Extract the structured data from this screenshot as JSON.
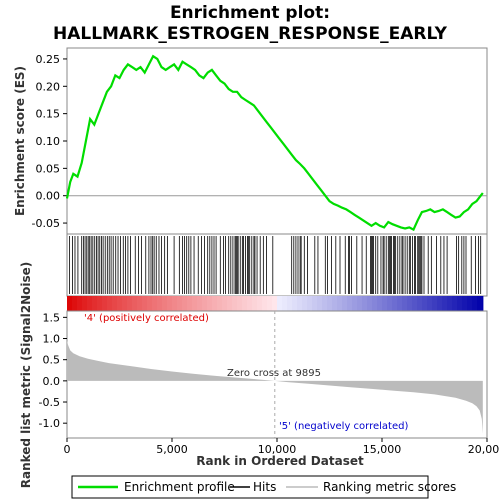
{
  "title_line1": "Enrichment plot:",
  "title_line2": "HALLMARK_ESTROGEN_RESPONSE_EARLY",
  "chart_data": [
    {
      "type": "line",
      "name": "enrichment-score-panel",
      "ylabel": "Enrichment score (ES)",
      "xlim": [
        0,
        20000
      ],
      "ylim": [
        -0.07,
        0.27
      ],
      "yticks": [
        -0.05,
        0.0,
        0.05,
        0.1,
        0.15,
        0.2,
        0.25
      ],
      "ytick_labels": [
        "-0.05",
        "0.00",
        "0.05",
        "0.10",
        "0.15",
        "0.20",
        "0.25"
      ],
      "series": [
        {
          "name": "Enrichment profile",
          "color": "#00dd00",
          "x": [
            0,
            150,
            300,
            500,
            700,
            900,
            1100,
            1300,
            1500,
            1700,
            1900,
            2100,
            2300,
            2500,
            2700,
            2900,
            3100,
            3300,
            3500,
            3700,
            3900,
            4100,
            4300,
            4500,
            4700,
            4900,
            5100,
            5300,
            5500,
            5700,
            5900,
            6100,
            6300,
            6500,
            6700,
            6900,
            7100,
            7300,
            7500,
            7700,
            7900,
            8100,
            8300,
            8500,
            8700,
            8900,
            9100,
            9300,
            9500,
            9700,
            9900,
            10100,
            10300,
            10500,
            10700,
            10900,
            11100,
            11300,
            11500,
            11700,
            11900,
            12100,
            12300,
            12500,
            12700,
            12900,
            13100,
            13300,
            13500,
            13700,
            13900,
            14100,
            14300,
            14500,
            14700,
            14900,
            15100,
            15300,
            15500,
            15700,
            15900,
            16100,
            16300,
            16500,
            16700,
            16900,
            17100,
            17300,
            17500,
            17700,
            17900,
            18100,
            18300,
            18500,
            18700,
            18900,
            19100,
            19300,
            19500,
            19700,
            19800
          ],
          "y": [
            -0.005,
            0.025,
            0.04,
            0.035,
            0.06,
            0.1,
            0.14,
            0.13,
            0.15,
            0.17,
            0.19,
            0.2,
            0.22,
            0.215,
            0.23,
            0.24,
            0.235,
            0.23,
            0.235,
            0.225,
            0.24,
            0.255,
            0.25,
            0.235,
            0.23,
            0.235,
            0.24,
            0.23,
            0.245,
            0.24,
            0.235,
            0.23,
            0.22,
            0.215,
            0.225,
            0.23,
            0.22,
            0.21,
            0.205,
            0.195,
            0.19,
            0.19,
            0.18,
            0.175,
            0.17,
            0.165,
            0.155,
            0.145,
            0.135,
            0.125,
            0.115,
            0.105,
            0.095,
            0.085,
            0.075,
            0.065,
            0.058,
            0.05,
            0.04,
            0.03,
            0.02,
            0.01,
            0.0,
            -0.01,
            -0.015,
            -0.018,
            -0.022,
            -0.025,
            -0.03,
            -0.035,
            -0.04,
            -0.045,
            -0.05,
            -0.055,
            -0.05,
            -0.055,
            -0.058,
            -0.048,
            -0.052,
            -0.055,
            -0.058,
            -0.06,
            -0.058,
            -0.062,
            -0.045,
            -0.03,
            -0.028,
            -0.025,
            -0.03,
            -0.028,
            -0.025,
            -0.03,
            -0.035,
            -0.04,
            -0.038,
            -0.03,
            -0.025,
            -0.015,
            -0.01,
            0.0,
            0.005
          ]
        }
      ],
      "baseline": 0.0
    },
    {
      "type": "scatter",
      "name": "hits-panel",
      "legend_label": "Hits",
      "color": "#000000",
      "hit_positions": [
        120,
        260,
        380,
        520,
        700,
        780,
        860,
        940,
        1010,
        1080,
        1150,
        1230,
        1320,
        1400,
        1480,
        1560,
        1640,
        1720,
        1820,
        1920,
        2010,
        2100,
        2200,
        2320,
        2430,
        2550,
        2680,
        2790,
        2900,
        3020,
        3250,
        3400,
        3550,
        3750,
        3900,
        4000,
        4080,
        4150,
        4250,
        4380,
        4500,
        4650,
        4780,
        5100,
        5350,
        5500,
        5600,
        5700,
        5800,
        5900,
        6050,
        6250,
        6400,
        6550,
        6700,
        6800,
        6900,
        7000,
        7100,
        7300,
        7450,
        7550,
        7700,
        7800,
        7900,
        8000,
        8050,
        8100,
        8150,
        8250,
        8350,
        8400,
        8500,
        8600,
        8650,
        8700,
        8800,
        8900,
        8950,
        9050,
        9200,
        9350,
        9500,
        9800,
        10700,
        10800,
        10900,
        11000,
        11100,
        11150,
        11300,
        11450,
        11800,
        11950,
        12300,
        12400,
        12600,
        12800,
        13000,
        13250,
        13400,
        13450,
        13550,
        13800,
        14050,
        14250,
        14450,
        14500,
        14550,
        14600,
        14700,
        14800,
        14950,
        15050,
        15100,
        15200,
        15300,
        15350,
        15400,
        15450,
        15550,
        15600,
        15650,
        15750,
        15850,
        15950,
        16000,
        16100,
        16200,
        16300,
        16350,
        16450,
        16550,
        16600,
        16700,
        16750,
        16800,
        16850,
        16900,
        17000,
        17200,
        17350,
        17600,
        17800,
        17950,
        18100,
        18550,
        18650,
        18800,
        18900,
        19000,
        19250,
        19450,
        19600,
        19700
      ]
    },
    {
      "type": "heatmap",
      "name": "rank-color-bar",
      "description_colors": {
        "positive": "#dd0000",
        "negative": "#0000aa",
        "neutral": "#f4f4ff"
      }
    },
    {
      "type": "area",
      "name": "ranked-list-panel",
      "xlabel": "Rank in Ordered Dataset",
      "ylabel": "Ranked list metric (Signal2Noise)",
      "xlim": [
        0,
        20000
      ],
      "ylim": [
        -1.35,
        1.65
      ],
      "xticks": [
        0,
        5000,
        10000,
        15000,
        20000
      ],
      "xtick_labels": [
        "0",
        "5,000",
        "10,000",
        "15,000",
        "20,000"
      ],
      "yticks": [
        -1.0,
        -0.5,
        0.0,
        0.5,
        1.0,
        1.5
      ],
      "ytick_labels": [
        "-1.0",
        "-0.5",
        "0.0",
        "0.5",
        "1.0",
        "1.5"
      ],
      "x": [
        0,
        50,
        150,
        300,
        600,
        1000,
        1500,
        2000,
        3000,
        4000,
        5000,
        6000,
        7000,
        8000,
        9000,
        9895,
        10500,
        11500,
        12500,
        13500,
        14500,
        15500,
        16500,
        17500,
        18500,
        19000,
        19300,
        19500,
        19650,
        19750,
        19800
      ],
      "y": [
        0.95,
        0.85,
        0.72,
        0.65,
        0.58,
        0.52,
        0.47,
        0.42,
        0.35,
        0.28,
        0.22,
        0.17,
        0.12,
        0.08,
        0.04,
        0.0,
        -0.03,
        -0.07,
        -0.11,
        -0.15,
        -0.19,
        -0.23,
        -0.27,
        -0.32,
        -0.4,
        -0.47,
        -0.53,
        -0.6,
        -0.7,
        -0.9,
        -1.25
      ],
      "fill": "#bbbbbb",
      "zero_cross_label": "Zero cross at 9895",
      "zero_cross": 9895,
      "pos_label": "'4' (positively correlated)",
      "neg_label": "'5' (negatively correlated)"
    }
  ],
  "legend": {
    "items": [
      {
        "label": "Enrichment profile",
        "color": "#00dd00"
      },
      {
        "label": "Hits",
        "color": "#000000"
      },
      {
        "label": "Ranking metric scores",
        "color": "#bbbbbb"
      }
    ]
  }
}
